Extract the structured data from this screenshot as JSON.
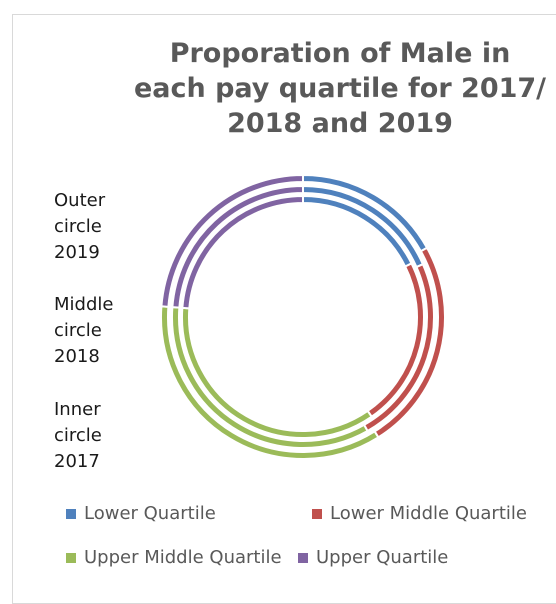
{
  "chart_data": {
    "type": "pie",
    "subtype": "multi-ring doughnut",
    "title_lines": [
      "Proporation of Male in",
      "each pay quartile for 2017/",
      "2018 and 2019"
    ],
    "side_note": [
      [
        "Outer",
        "circle",
        "2019"
      ],
      [
        "Middle",
        "circle",
        "2018"
      ],
      [
        "Inner",
        "circle",
        "2017"
      ]
    ],
    "categories": [
      "Lower Quartile",
      "Lower Middle Quartile",
      "Upper Middle Quartile",
      "Upper Quartile"
    ],
    "colors": [
      "#4f81bd",
      "#c0504d",
      "#9bbb59",
      "#8064a2"
    ],
    "series": [
      {
        "values": [
          16.9,
          24.2,
          35.1,
          23.8
        ]
      },
      {
        "values": [
          18.4,
          23.4,
          34.4,
          23.8
        ]
      },
      {
        "values": [
          17.7,
          22.7,
          35.8,
          23.8
        ]
      }
    ],
    "legend_position": "bottom"
  }
}
